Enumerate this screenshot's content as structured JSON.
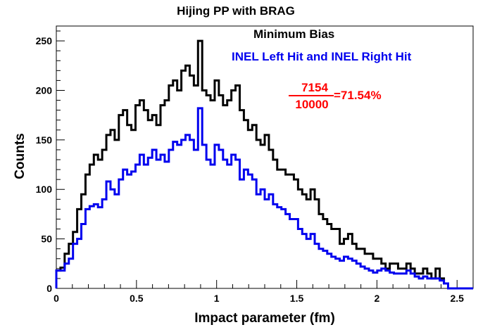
{
  "chart_data": {
    "type": "line",
    "title": "Hijing PP with BRAG",
    "xlabel": "Impact parameter (fm)",
    "ylabel": "Counts",
    "xlim": [
      0,
      2.6
    ],
    "ylim": [
      0,
      265
    ],
    "x_ticks": [
      0,
      0.5,
      1,
      1.5,
      2,
      2.5
    ],
    "x_tick_labels": [
      "0",
      "0.5",
      "1",
      "1.5",
      "2",
      "2.5"
    ],
    "y_ticks": [
      0,
      50,
      100,
      150,
      200,
      250
    ],
    "y_tick_labels": [
      "0",
      "50",
      "100",
      "150",
      "200",
      "250"
    ],
    "grid": false,
    "step": true,
    "bin_width": 0.026,
    "x": [
      0,
      0.026,
      0.052,
      0.078,
      0.104,
      0.13,
      0.156,
      0.182,
      0.208,
      0.234,
      0.26,
      0.286,
      0.312,
      0.338,
      0.364,
      0.39,
      0.416,
      0.442,
      0.468,
      0.494,
      0.52,
      0.546,
      0.572,
      0.598,
      0.624,
      0.65,
      0.676,
      0.702,
      0.728,
      0.754,
      0.78,
      0.806,
      0.832,
      0.858,
      0.884,
      0.91,
      0.936,
      0.962,
      0.988,
      1.014,
      1.04,
      1.066,
      1.092,
      1.118,
      1.144,
      1.17,
      1.196,
      1.222,
      1.248,
      1.274,
      1.3,
      1.326,
      1.352,
      1.378,
      1.404,
      1.43,
      1.456,
      1.482,
      1.508,
      1.534,
      1.56,
      1.586,
      1.612,
      1.638,
      1.664,
      1.69,
      1.716,
      1.742,
      1.768,
      1.794,
      1.82,
      1.846,
      1.872,
      1.898,
      1.924,
      1.95,
      1.976,
      2.002,
      2.028,
      2.054,
      2.08,
      2.106,
      2.132,
      2.158,
      2.184,
      2.21,
      2.236,
      2.262,
      2.288,
      2.314,
      2.34,
      2.366,
      2.392,
      2.418
    ],
    "series": [
      {
        "name": "Minimum Bias",
        "color": "#000000",
        "values": [
          18,
          21,
          35,
          45,
          57,
          80,
          95,
          115,
          125,
          135,
          130,
          140,
          155,
          160,
          150,
          175,
          180,
          165,
          160,
          185,
          190,
          180,
          170,
          175,
          165,
          185,
          190,
          205,
          210,
          200,
          220,
          225,
          215,
          205,
          250,
          200,
          195,
          190,
          210,
          195,
          185,
          190,
          200,
          205,
          180,
          170,
          160,
          165,
          150,
          145,
          155,
          140,
          130,
          120,
          120,
          115,
          115,
          110,
          100,
          95,
          90,
          100,
          90,
          75,
          70,
          65,
          60,
          60,
          45,
          50,
          55,
          45,
          40,
          40,
          35,
          35,
          30,
          30,
          25,
          20,
          25,
          25,
          20,
          20,
          25,
          20,
          15,
          15,
          20,
          15,
          10,
          20,
          10,
          5
        ]
      },
      {
        "name": "INEL Left Hit and INEL Right Hit",
        "color": "#0000ee",
        "values": [
          18,
          18,
          25,
          30,
          45,
          50,
          65,
          80,
          83,
          85,
          82,
          90,
          108,
          100,
          95,
          110,
          120,
          115,
          118,
          125,
          135,
          125,
          132,
          140,
          130,
          135,
          128,
          140,
          148,
          145,
          150,
          155,
          150,
          140,
          182,
          145,
          130,
          125,
          145,
          140,
          130,
          125,
          135,
          130,
          110,
          120,
          115,
          110,
          95,
          100,
          90,
          95,
          85,
          82,
          80,
          75,
          70,
          70,
          60,
          55,
          50,
          55,
          45,
          40,
          38,
          35,
          32,
          30,
          28,
          32,
          30,
          28,
          25,
          22,
          20,
          18,
          16,
          18,
          20,
          18,
          16,
          15,
          15,
          15,
          18,
          15,
          12,
          10,
          12,
          10,
          10,
          10,
          8,
          5
        ]
      }
    ],
    "annotations": [
      {
        "text": "Minimum Bias",
        "color": "#000000"
      },
      {
        "text": "INEL Left Hit and INEL Right Hit",
        "color": "#0000ee"
      },
      {
        "numerator": "7154",
        "denominator": "10000",
        "result": "=71.54%",
        "color": "#ff0000"
      }
    ]
  }
}
